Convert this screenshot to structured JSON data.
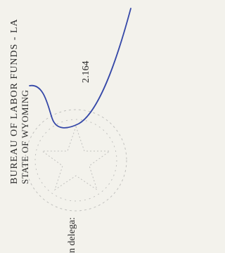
{
  "header": {
    "agency": "BUREAU OF LABOR FUNDS - LA",
    "state": "STATE OF WYOMING"
  },
  "figure": "2.164",
  "note": "n delega:"
}
